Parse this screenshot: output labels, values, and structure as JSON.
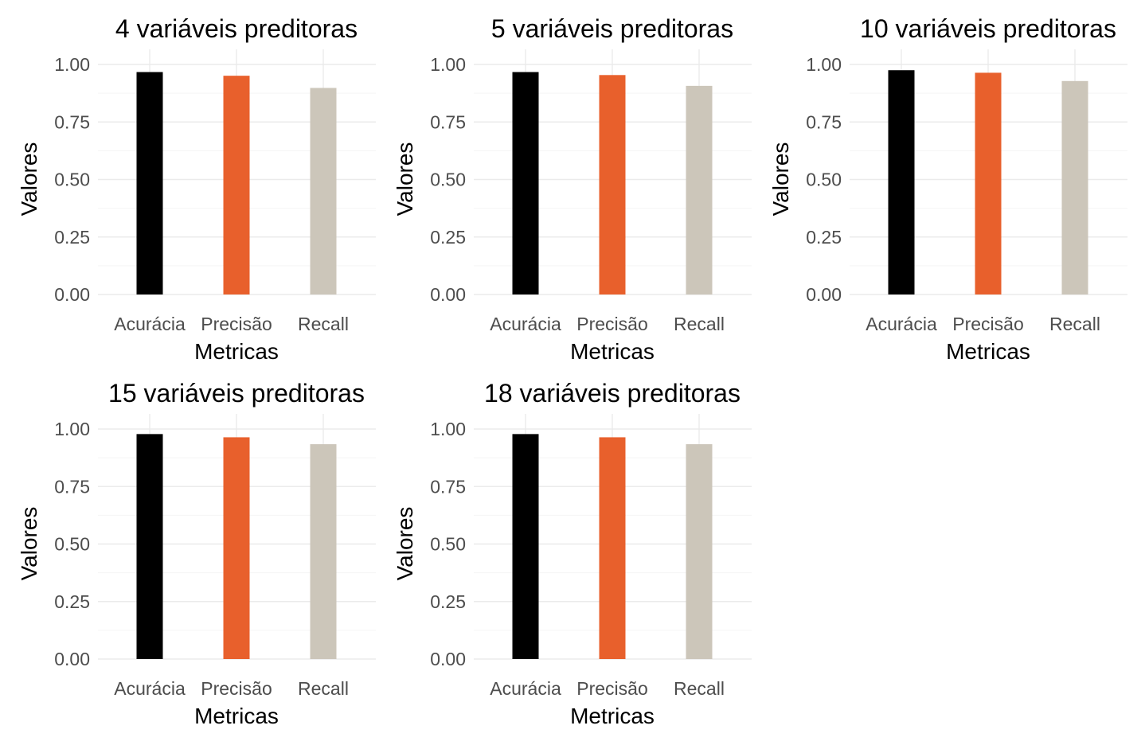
{
  "colors": {
    "Acurácia": "#000000",
    "Precisão": "#E8602C",
    "Recall": "#CCC6BA",
    "grid_major": "#EBEBEB",
    "grid_minor": "#F5F5F5",
    "tick_text": "#4D4D4D",
    "label_text": "#000000"
  },
  "chart_data": [
    {
      "type": "bar",
      "title": "4 variáveis preditoras",
      "xlabel": "Metricas",
      "ylabel": "Valores",
      "categories": [
        "Acurácia",
        "Precisão",
        "Recall"
      ],
      "values": [
        0.967,
        0.951,
        0.898
      ],
      "ylim": [
        0,
        1
      ],
      "yticks": [
        "0.00",
        "0.25",
        "0.50",
        "0.75",
        "1.00"
      ],
      "grid": true,
      "legend": "none"
    },
    {
      "type": "bar",
      "title": "5 variáveis preditoras",
      "xlabel": "Metricas",
      "ylabel": "Valores",
      "categories": [
        "Acurácia",
        "Precisão",
        "Recall"
      ],
      "values": [
        0.967,
        0.954,
        0.907
      ],
      "ylim": [
        0,
        1
      ],
      "yticks": [
        "0.00",
        "0.25",
        "0.50",
        "0.75",
        "1.00"
      ],
      "grid": true,
      "legend": "none"
    },
    {
      "type": "bar",
      "title": "10 variáveis preditoras",
      "xlabel": "Metricas",
      "ylabel": "Valores",
      "categories": [
        "Acurácia",
        "Precisão",
        "Recall"
      ],
      "values": [
        0.975,
        0.964,
        0.928
      ],
      "ylim": [
        0,
        1
      ],
      "yticks": [
        "0.00",
        "0.25",
        "0.50",
        "0.75",
        "1.00"
      ],
      "grid": true,
      "legend": "none"
    },
    {
      "type": "bar",
      "title": "15 variáveis preditoras",
      "xlabel": "Metricas",
      "ylabel": "Valores",
      "categories": [
        "Acurácia",
        "Precisão",
        "Recall"
      ],
      "values": [
        0.978,
        0.964,
        0.934
      ],
      "ylim": [
        0,
        1
      ],
      "yticks": [
        "0.00",
        "0.25",
        "0.50",
        "0.75",
        "1.00"
      ],
      "grid": true,
      "legend": "none"
    },
    {
      "type": "bar",
      "title": "18 variáveis preditoras",
      "xlabel": "Metricas",
      "ylabel": "Valores",
      "categories": [
        "Acurácia",
        "Precisão",
        "Recall"
      ],
      "values": [
        0.978,
        0.964,
        0.934
      ],
      "ylim": [
        0,
        1
      ],
      "yticks": [
        "0.00",
        "0.25",
        "0.50",
        "0.75",
        "1.00"
      ],
      "grid": true,
      "legend": "none"
    }
  ]
}
